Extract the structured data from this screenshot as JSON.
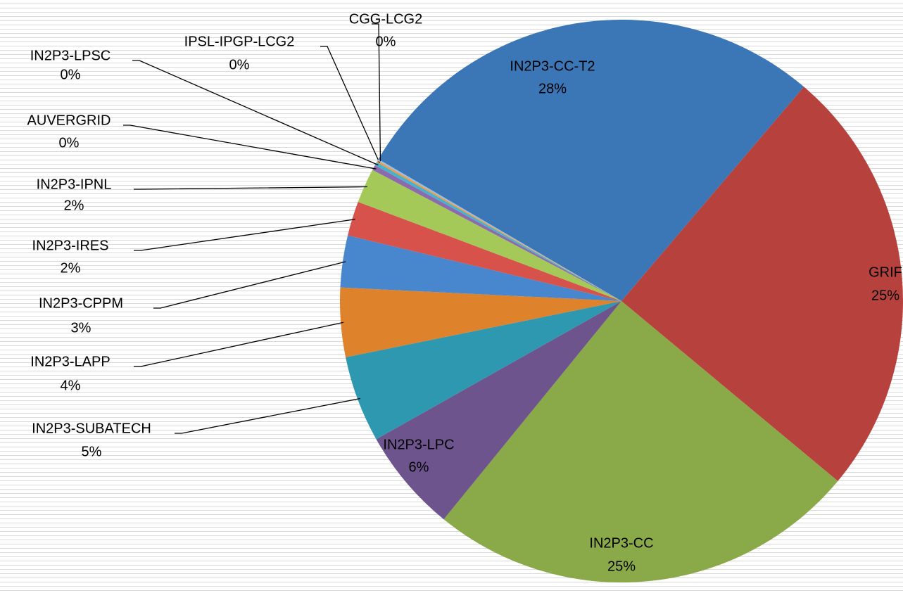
{
  "chart_data": {
    "type": "pie",
    "categories": [
      "IN2P3-CC-T2",
      "GRIF",
      "IN2P3-CC",
      "IN2P3-LPC",
      "IN2P3-SUBATECH",
      "IN2P3-LAPP",
      "IN2P3-CPPM",
      "IN2P3-IRES",
      "IN2P3-IPNL",
      "AUVERGRID",
      "IN2P3-LPSC",
      "IPSL-IPGP-LCG2",
      "CGG-LCG2"
    ],
    "values": [
      28,
      25,
      25,
      6,
      5,
      4,
      3,
      2,
      2,
      0.3,
      0.2,
      0.1,
      0.1
    ],
    "value_labels": [
      "28%",
      "25%",
      "25%",
      "6%",
      "5%",
      "4%",
      "3%",
      "2%",
      "2%",
      "0%",
      "0%",
      "0%",
      "0%"
    ],
    "colors": [
      "#3b76b6",
      "#b7423d",
      "#8aa948",
      "#6e548d",
      "#2d98b0",
      "#de822b",
      "#4887cd",
      "#d6524b",
      "#a4c958",
      "#8b6aae",
      "#48b2cd",
      "#f3993a",
      "#9bbce0"
    ]
  }
}
